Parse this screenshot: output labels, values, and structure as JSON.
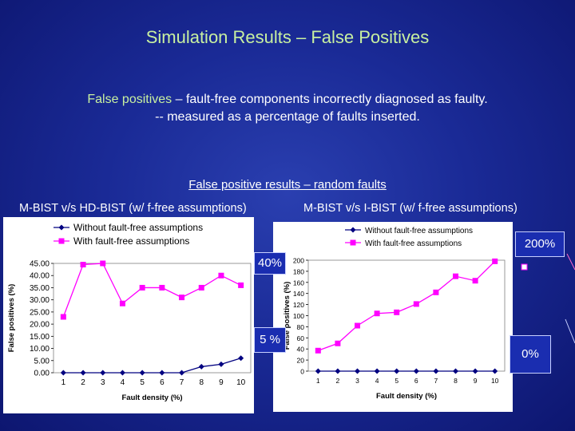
{
  "slide": {
    "title": "Simulation Results – False Positives",
    "definition_term": "False positives",
    "definition_rest": " – fault-free components incorrectly diagnosed as faulty.",
    "definition_line2": "-- measured as a percentage of faults inserted.",
    "subheading": "False positive results – random faults",
    "left_chart_title": "M-BIST v/s HD-BIST (w/ f-free assumptions)",
    "right_chart_title": "M-BIST v/s I-BIST (w/ f-free assumptions)",
    "callouts": {
      "left_high": "40%",
      "left_low": "5 %",
      "right_high": "200%",
      "right_low": "0%"
    }
  },
  "colors": {
    "series_without": "#000080",
    "series_with": "#ff00ff",
    "title": "#c8f0a0",
    "callout_bg": "#1a2db0"
  },
  "chart_data": [
    {
      "type": "line",
      "title": "",
      "xlabel": "Fault density (%)",
      "ylabel": "False positives (%)",
      "x": [
        1,
        2,
        3,
        4,
        5,
        6,
        7,
        8,
        9,
        10
      ],
      "ylim": [
        0,
        45
      ],
      "yticks": [
        "0.00",
        "5.00",
        "10.00",
        "15.00",
        "20.00",
        "25.00",
        "30.00",
        "35.00",
        "40.00",
        "45.00"
      ],
      "legend_position": "top-left",
      "series": [
        {
          "name": "Without fault-free assumptions",
          "values": [
            0,
            0,
            0,
            0,
            0,
            0,
            0,
            2.5,
            3.5,
            6
          ]
        },
        {
          "name": "With fault-free assumptions",
          "values": [
            23,
            44.5,
            45,
            28.5,
            35,
            35,
            31,
            35,
            40,
            36
          ]
        }
      ]
    },
    {
      "type": "line",
      "title": "",
      "xlabel": "Fault density (%)",
      "ylabel": "False positives (%)",
      "x": [
        1,
        2,
        3,
        4,
        5,
        6,
        7,
        8,
        9,
        10
      ],
      "ylim": [
        0,
        200
      ],
      "yticks": [
        "0",
        "20",
        "40",
        "60",
        "80",
        "100",
        "120",
        "140",
        "160",
        "180",
        "200"
      ],
      "legend_position": "top-right",
      "series": [
        {
          "name": "Without fault-free assumptions",
          "values": [
            0,
            0,
            0,
            0,
            0,
            0,
            0,
            0,
            0,
            0
          ]
        },
        {
          "name": "With fault-free assumptions",
          "values": [
            37,
            50,
            82,
            104,
            106,
            121,
            142,
            171,
            163,
            198
          ]
        }
      ]
    }
  ]
}
